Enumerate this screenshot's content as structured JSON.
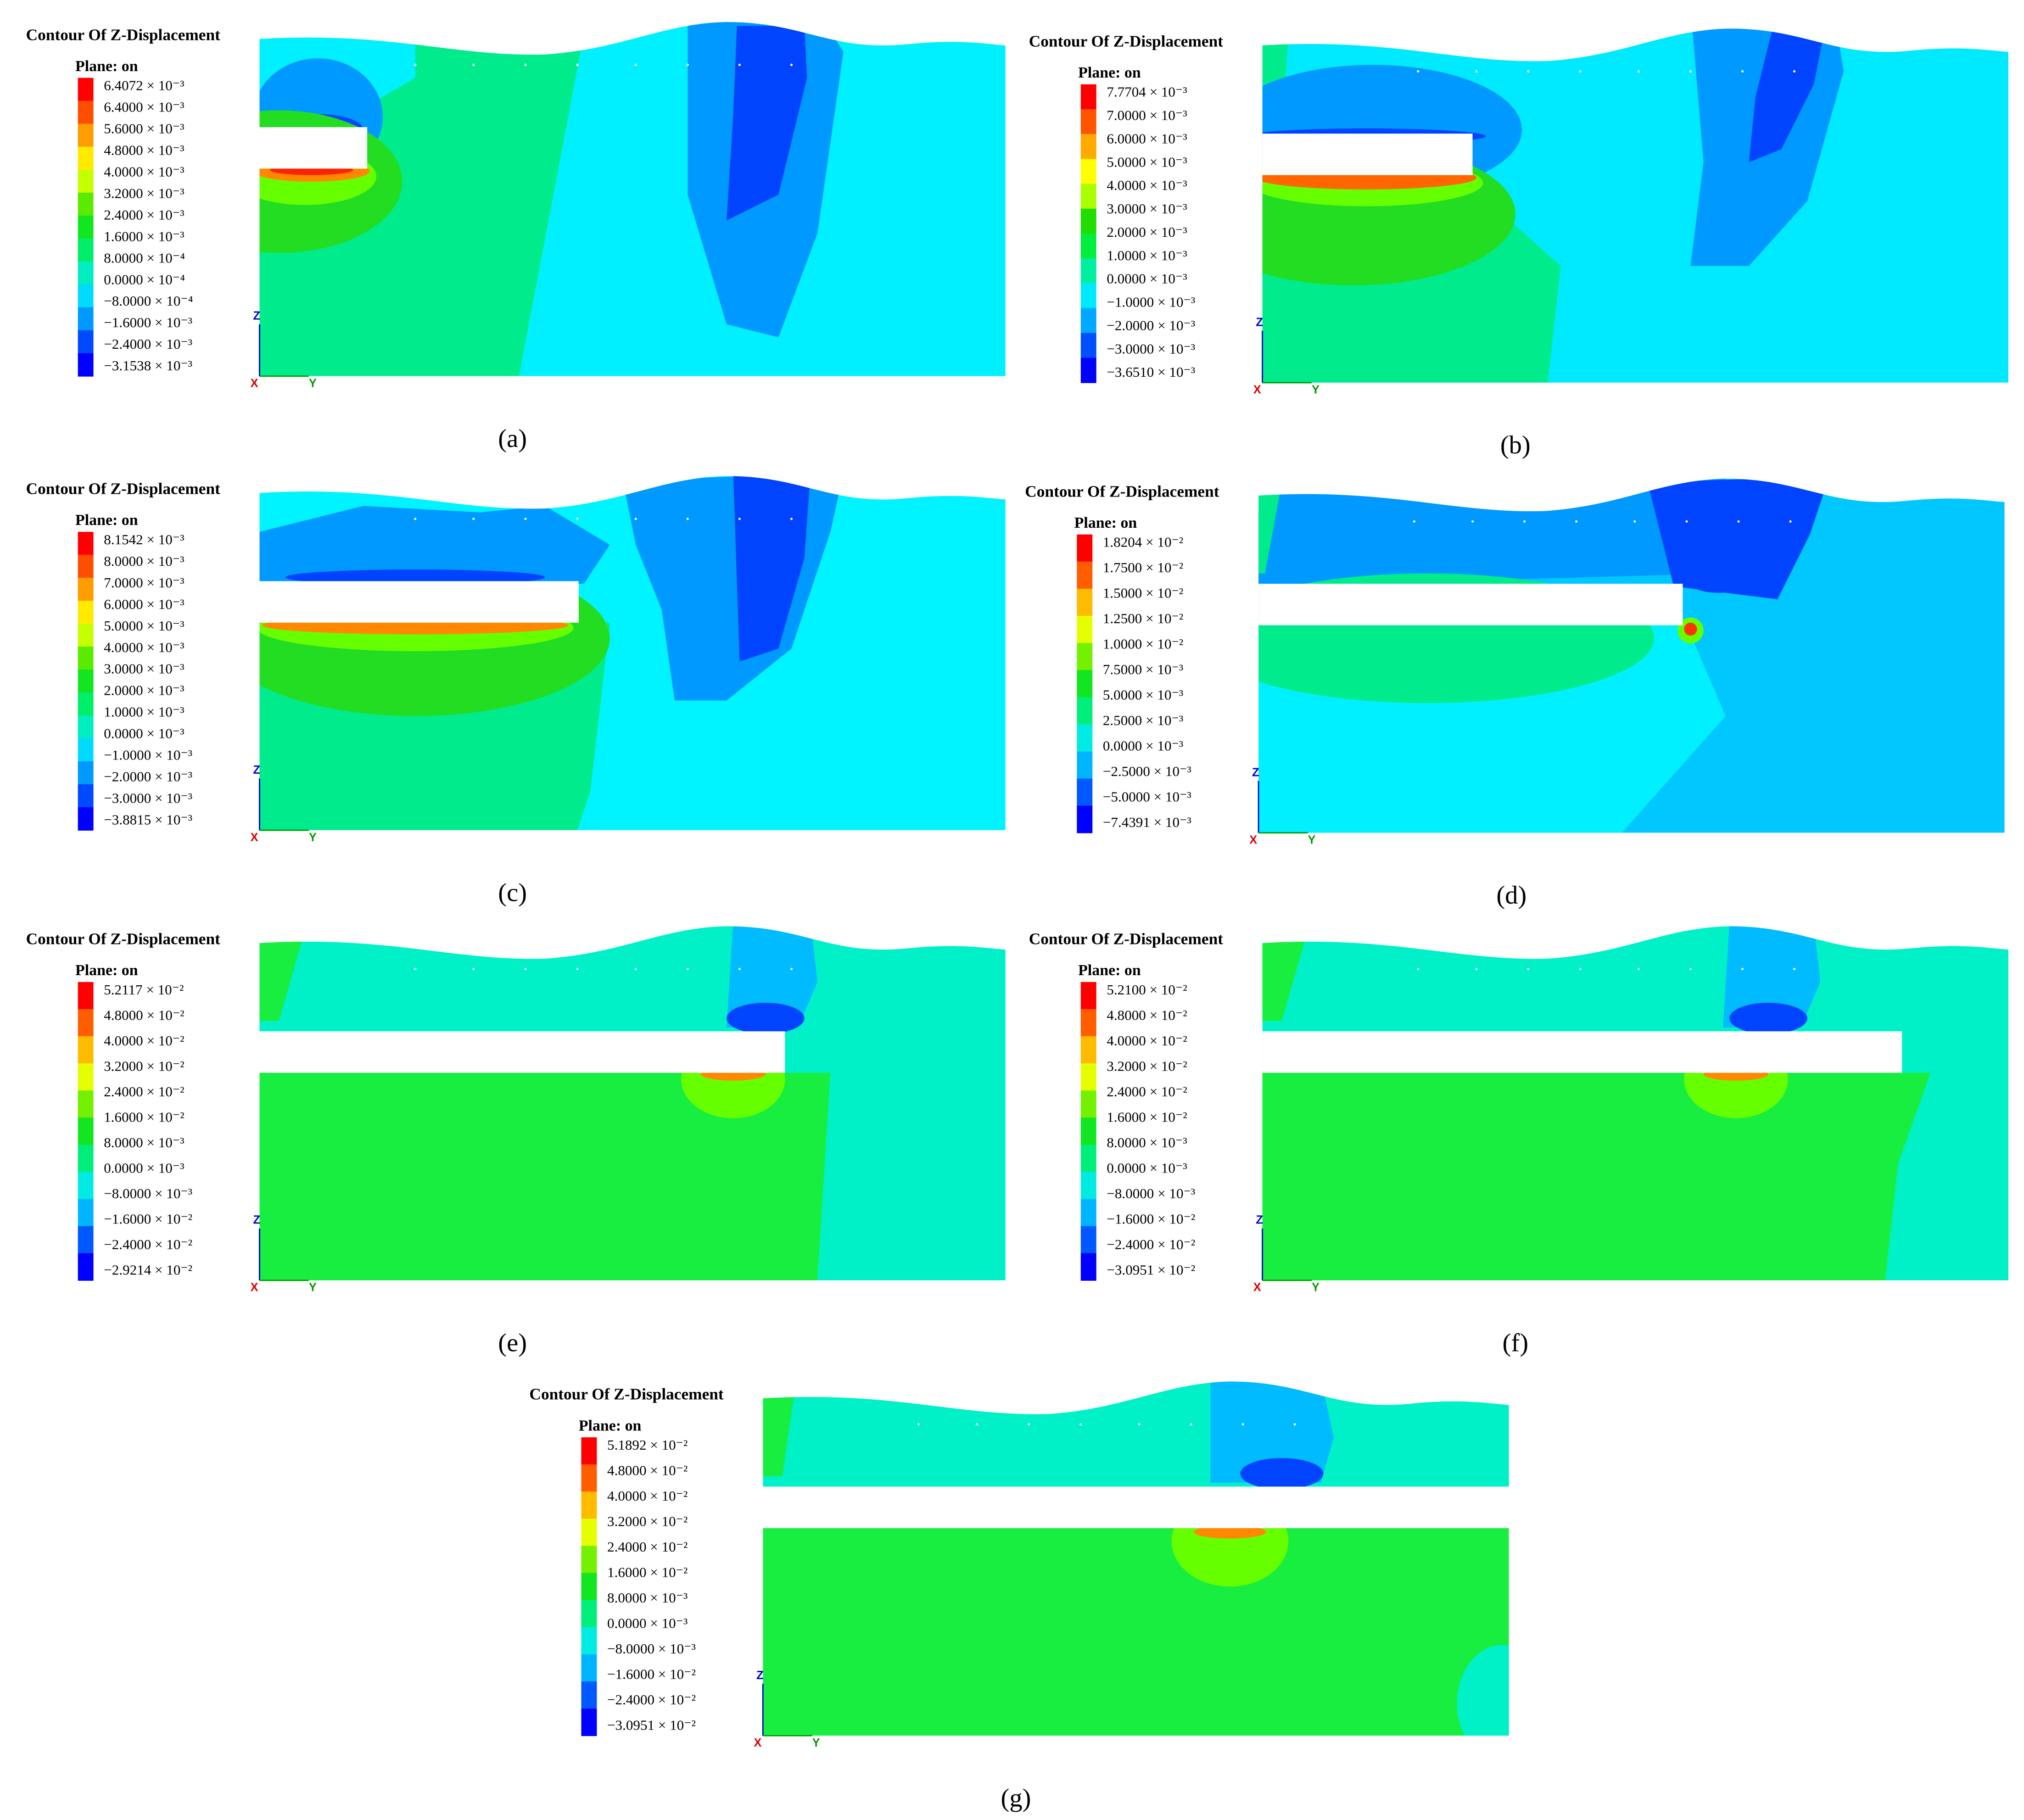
{
  "panels": [
    {
      "title": "Contour Of Z-Displacement",
      "plane": "Plane: on",
      "legend": [
        "6.4072 × 10⁻³",
        "6.4000 × 10⁻³",
        "5.6000 × 10⁻³",
        "4.8000 × 10⁻³",
        "4.0000 × 10⁻³",
        "3.2000 × 10⁻³",
        "2.4000 × 10⁻³",
        "1.6000 × 10⁻³",
        "8.0000 × 10⁻⁴",
        "0.0000 × 10⁻⁴",
        "−8.0000 × 10⁻⁴",
        "−1.6000 × 10⁻³",
        "−2.4000 × 10⁻³",
        "−3.1538 × 10⁻³"
      ],
      "axes": {
        "z": "Z",
        "x": "X",
        "y": "Y"
      },
      "caption": "(a)"
    },
    {
      "title": "Contour Of Z-Displacement",
      "plane": "Plane: on",
      "legend": [
        "7.7704 × 10⁻³",
        "7.0000 × 10⁻³",
        "6.0000 × 10⁻³",
        "5.0000 × 10⁻³",
        "4.0000 × 10⁻³",
        "3.0000 × 10⁻³",
        "2.0000 × 10⁻³",
        "1.0000 × 10⁻³",
        "0.0000 × 10⁻³",
        "−1.0000 × 10⁻³",
        "−2.0000 × 10⁻³",
        "−3.0000 × 10⁻³",
        "−3.6510 × 10⁻³"
      ],
      "axes": {
        "z": "Z",
        "x": "X",
        "y": "Y"
      },
      "caption": "(b)"
    },
    {
      "title": "Contour Of Z-Displacement",
      "plane": "Plane: on",
      "legend": [
        "8.1542 × 10⁻³",
        "8.0000 × 10⁻³",
        "7.0000 × 10⁻³",
        "6.0000 × 10⁻³",
        "5.0000 × 10⁻³",
        "4.0000 × 10⁻³",
        "3.0000 × 10⁻³",
        "2.0000 × 10⁻³",
        "1.0000 × 10⁻³",
        "0.0000 × 10⁻³",
        "−1.0000 × 10⁻³",
        "−2.0000 × 10⁻³",
        "−3.0000 × 10⁻³",
        "−3.8815 × 10⁻³"
      ],
      "axes": {
        "z": "Z",
        "x": "X",
        "y": "Y"
      },
      "caption": "(c)"
    },
    {
      "title": "Contour Of Z-Displacement",
      "plane": "Plane: on",
      "legend": [
        "1.8204 × 10⁻²",
        "1.7500 × 10⁻²",
        "1.5000 × 10⁻²",
        "1.2500 × 10⁻²",
        "1.0000 × 10⁻²",
        "7.5000 × 10⁻³",
        "5.0000 × 10⁻³",
        "2.5000 × 10⁻³",
        "0.0000 × 10⁻³",
        "−2.5000 × 10⁻³",
        "−5.0000 × 10⁻³",
        "−7.4391 × 10⁻³"
      ],
      "axes": {
        "z": "Z",
        "x": "X",
        "y": "Y"
      },
      "caption": "(d)"
    },
    {
      "title": "Contour Of Z-Displacement",
      "plane": "Plane: on",
      "legend": [
        "5.2117 × 10⁻²",
        "4.8000 × 10⁻²",
        "4.0000 × 10⁻²",
        "3.2000 × 10⁻²",
        "2.4000 × 10⁻²",
        "1.6000 × 10⁻²",
        "8.0000 × 10⁻³",
        "0.0000 × 10⁻³",
        "−8.0000 × 10⁻³",
        "−1.6000 × 10⁻²",
        "−2.4000 × 10⁻²",
        "−2.9214 × 10⁻²"
      ],
      "axes": {
        "z": "Z",
        "x": "X",
        "y": "Y"
      },
      "caption": "(e)"
    },
    {
      "title": "Contour Of Z-Displacement",
      "plane": "Plane: on",
      "legend": [
        "5.2100 × 10⁻²",
        "4.8000 × 10⁻²",
        "4.0000 × 10⁻²",
        "3.2000 × 10⁻²",
        "2.4000 × 10⁻²",
        "1.6000 × 10⁻²",
        "8.0000 × 10⁻³",
        "0.0000 × 10⁻³",
        "−8.0000 × 10⁻³",
        "−1.6000 × 10⁻²",
        "−2.4000 × 10⁻²",
        "−3.0951 × 10⁻²"
      ],
      "axes": {
        "z": "Z",
        "x": "X",
        "y": "Y"
      },
      "caption": "(f)"
    },
    {
      "title": "Contour Of Z-Displacement",
      "plane": "Plane: on",
      "legend": [
        "5.1892 × 10⁻²",
        "4.8000 × 10⁻²",
        "4.0000 × 10⁻²",
        "3.2000 × 10⁻²",
        "2.4000 × 10⁻²",
        "1.6000 × 10⁻²",
        "8.0000 × 10⁻³",
        "0.0000 × 10⁻³",
        "−8.0000 × 10⁻³",
        "−1.6000 × 10⁻²",
        "−2.4000 × 10⁻²",
        "−3.0951 × 10⁻²"
      ],
      "axes": {
        "z": "Z",
        "x": "X",
        "y": "Y"
      },
      "caption": "(g)"
    }
  ]
}
